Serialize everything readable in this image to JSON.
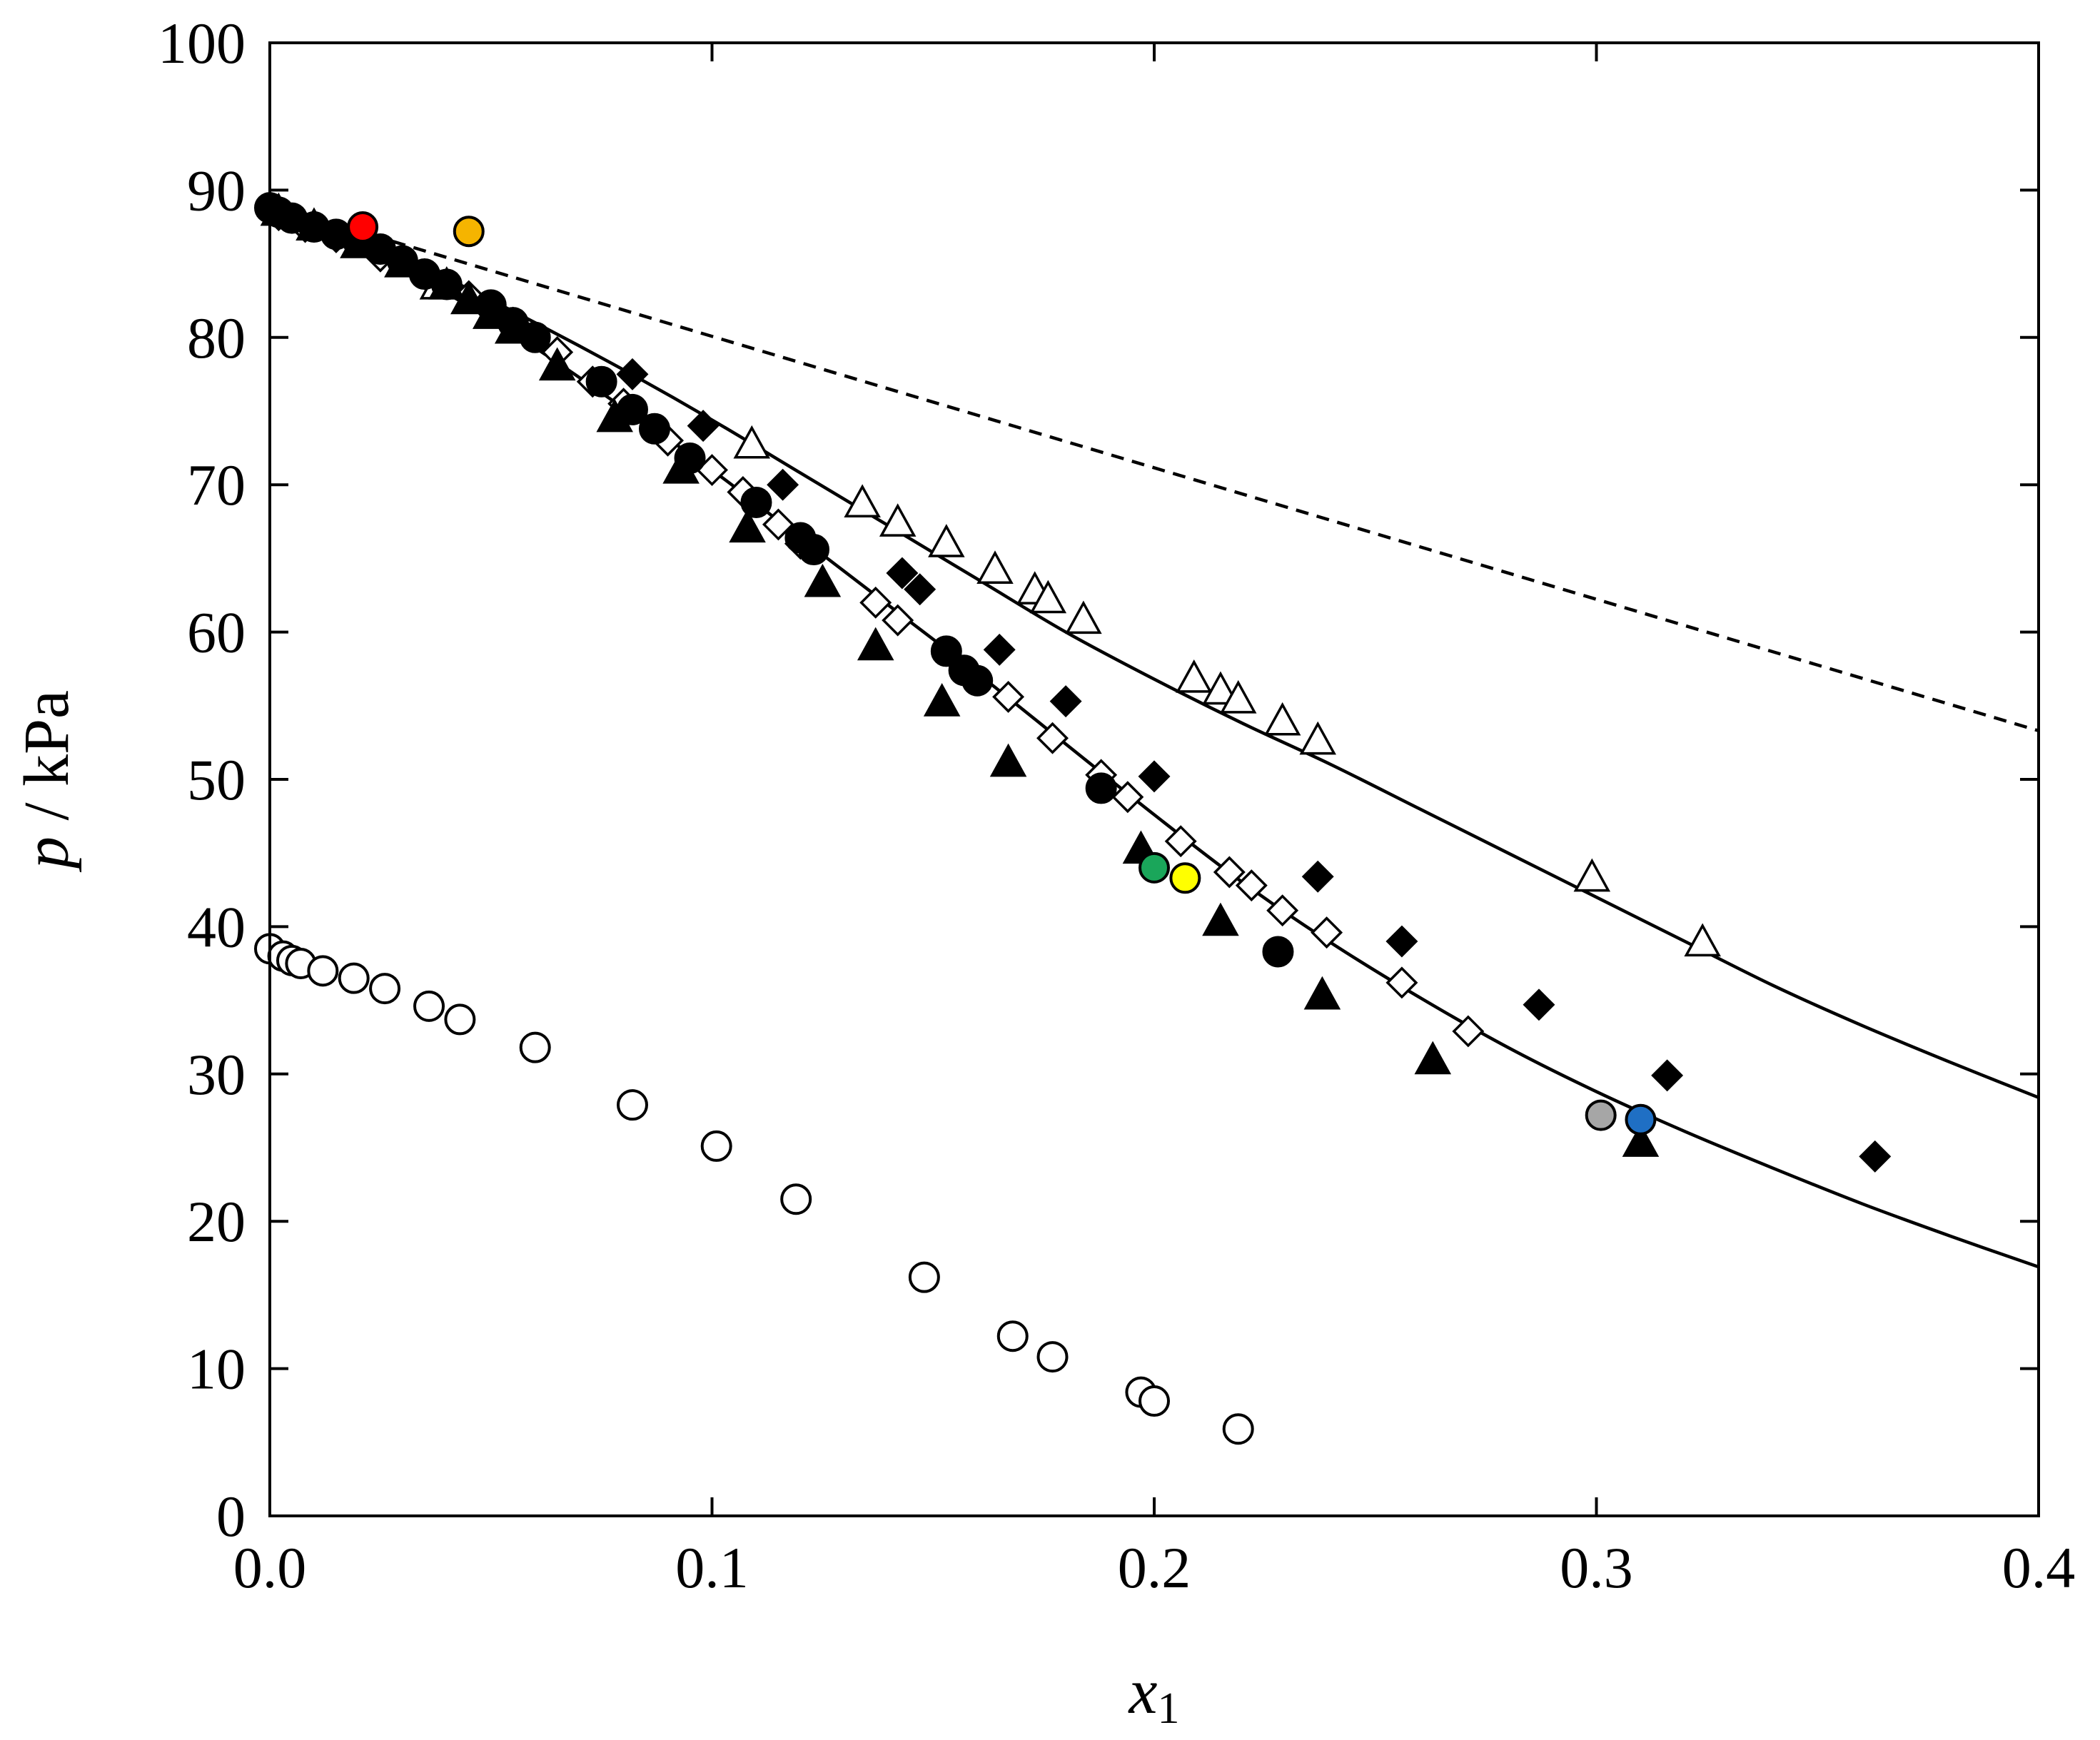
{
  "chart_data": {
    "type": "scatter",
    "xlabel": "x",
    "xlabel_subscript": "1",
    "ylabel_italic": "p",
    "ylabel_rest": " / kPa",
    "xlim": [
      0.0,
      0.4
    ],
    "ylim": [
      0,
      100
    ],
    "xticks": [
      "0.0",
      "0.1",
      "0.2",
      "0.3",
      "0.4"
    ],
    "yticks": [
      "0",
      "10",
      "20",
      "30",
      "40",
      "50",
      "60",
      "70",
      "80",
      "90",
      "100"
    ],
    "series": [
      {
        "marker": "filled-circle",
        "fill": "#000000",
        "stroke": "#000000",
        "points": [
          [
            0.0,
            88.8
          ],
          [
            0.002,
            88.5
          ],
          [
            0.005,
            88.1
          ],
          [
            0.01,
            87.5
          ],
          [
            0.015,
            87.0
          ],
          [
            0.02,
            86.5
          ],
          [
            0.025,
            86.0
          ],
          [
            0.03,
            85.2
          ],
          [
            0.035,
            84.3
          ],
          [
            0.04,
            83.6
          ],
          [
            0.05,
            82.2
          ],
          [
            0.055,
            81.0
          ],
          [
            0.06,
            80.0
          ],
          [
            0.075,
            77.0
          ],
          [
            0.082,
            75.1
          ],
          [
            0.087,
            73.8
          ],
          [
            0.095,
            71.8
          ],
          [
            0.11,
            68.8
          ],
          [
            0.12,
            66.4
          ],
          [
            0.123,
            65.6
          ],
          [
            0.153,
            58.7
          ],
          [
            0.157,
            57.4
          ],
          [
            0.16,
            56.7
          ],
          [
            0.188,
            49.4
          ],
          [
            0.228,
            38.3
          ]
        ]
      },
      {
        "marker": "filled-triangle",
        "fill": "#000000",
        "stroke": "#000000",
        "points": [
          [
            0.002,
            88.5
          ],
          [
            0.01,
            87.5
          ],
          [
            0.02,
            86.3
          ],
          [
            0.03,
            85.0
          ],
          [
            0.04,
            83.5
          ],
          [
            0.045,
            82.5
          ],
          [
            0.05,
            81.5
          ],
          [
            0.055,
            80.5
          ],
          [
            0.065,
            78.0
          ],
          [
            0.078,
            74.5
          ],
          [
            0.093,
            71.0
          ],
          [
            0.108,
            67.0
          ],
          [
            0.125,
            63.3
          ],
          [
            0.137,
            59.0
          ],
          [
            0.152,
            55.2
          ],
          [
            0.167,
            51.1
          ],
          [
            0.197,
            45.2
          ],
          [
            0.215,
            40.3
          ],
          [
            0.238,
            35.3
          ],
          [
            0.263,
            30.9
          ],
          [
            0.31,
            25.3
          ]
        ]
      },
      {
        "marker": "filled-diamond",
        "fill": "#000000",
        "stroke": "#000000",
        "points": [
          [
            0.082,
            77.5
          ],
          [
            0.098,
            74.0
          ],
          [
            0.116,
            70.0
          ],
          [
            0.143,
            64.0
          ],
          [
            0.147,
            62.9
          ],
          [
            0.165,
            58.8
          ],
          [
            0.18,
            55.3
          ],
          [
            0.2,
            50.2
          ],
          [
            0.237,
            43.4
          ],
          [
            0.256,
            39.0
          ],
          [
            0.287,
            34.7
          ],
          [
            0.316,
            29.9
          ],
          [
            0.363,
            24.4
          ]
        ]
      },
      {
        "marker": "open-diamond",
        "fill": "#ffffff",
        "stroke": "#000000",
        "points": [
          [
            0.002,
            88.3
          ],
          [
            0.008,
            87.5
          ],
          [
            0.015,
            86.8
          ],
          [
            0.025,
            85.5
          ],
          [
            0.035,
            84.3
          ],
          [
            0.045,
            82.8
          ],
          [
            0.055,
            81.0
          ],
          [
            0.065,
            79.0
          ],
          [
            0.073,
            77.0
          ],
          [
            0.08,
            75.5
          ],
          [
            0.09,
            73.0
          ],
          [
            0.1,
            71.0
          ],
          [
            0.107,
            69.5
          ],
          [
            0.115,
            67.3
          ],
          [
            0.12,
            66.0
          ],
          [
            0.137,
            62.0
          ],
          [
            0.142,
            60.8
          ],
          [
            0.167,
            55.6
          ],
          [
            0.177,
            52.8
          ],
          [
            0.188,
            50.3
          ],
          [
            0.194,
            48.8
          ],
          [
            0.206,
            45.8
          ],
          [
            0.217,
            43.7
          ],
          [
            0.222,
            42.8
          ],
          [
            0.229,
            41.1
          ],
          [
            0.239,
            39.6
          ],
          [
            0.256,
            36.2
          ],
          [
            0.271,
            32.9
          ]
        ]
      },
      {
        "marker": "open-triangle",
        "fill": "#ffffff",
        "stroke": "#000000",
        "points": [
          [
            0.038,
            83.5
          ],
          [
            0.109,
            72.7
          ],
          [
            0.134,
            68.7
          ],
          [
            0.142,
            67.4
          ],
          [
            0.153,
            66.0
          ],
          [
            0.164,
            64.2
          ],
          [
            0.173,
            62.8
          ],
          [
            0.176,
            62.2
          ],
          [
            0.184,
            60.8
          ],
          [
            0.209,
            56.8
          ],
          [
            0.215,
            56.0
          ],
          [
            0.219,
            55.4
          ],
          [
            0.229,
            53.9
          ],
          [
            0.237,
            52.6
          ],
          [
            0.299,
            43.3
          ],
          [
            0.324,
            38.9
          ]
        ]
      },
      {
        "marker": "open-circle",
        "fill": "#ffffff",
        "stroke": "#000000",
        "points": [
          [
            0.0,
            38.5
          ],
          [
            0.003,
            38.0
          ],
          [
            0.005,
            37.7
          ],
          [
            0.007,
            37.5
          ],
          [
            0.012,
            37.0
          ],
          [
            0.019,
            36.5
          ],
          [
            0.026,
            35.8
          ],
          [
            0.036,
            34.6
          ],
          [
            0.043,
            33.7
          ],
          [
            0.06,
            31.8
          ],
          [
            0.082,
            27.9
          ],
          [
            0.101,
            25.1
          ],
          [
            0.119,
            21.5
          ],
          [
            0.148,
            16.2
          ],
          [
            0.168,
            12.2
          ],
          [
            0.177,
            10.8
          ],
          [
            0.197,
            8.4
          ],
          [
            0.2,
            7.8
          ],
          [
            0.219,
            5.9
          ]
        ]
      },
      {
        "marker": "colored-circle",
        "stroke": "#000000",
        "points": [
          [
            0.021,
            87.5,
            "#ff0000"
          ],
          [
            0.045,
            87.2,
            "#f5b400"
          ],
          [
            0.2,
            44.0,
            "#1aa65a"
          ],
          [
            0.207,
            43.3,
            "#ffff00"
          ],
          [
            0.301,
            27.2,
            "#a6a6a6"
          ],
          [
            0.31,
            26.9,
            "#1f6fc4"
          ]
        ]
      }
    ],
    "curves": [
      {
        "style": "solid",
        "points": [
          [
            0.0,
            89.0
          ],
          [
            0.02,
            86.5
          ],
          [
            0.04,
            84.0
          ],
          [
            0.06,
            81.0
          ],
          [
            0.08,
            77.8
          ],
          [
            0.1,
            74.4
          ],
          [
            0.12,
            70.8
          ],
          [
            0.14,
            67.2
          ],
          [
            0.16,
            63.6
          ],
          [
            0.18,
            60.0
          ],
          [
            0.2,
            56.8
          ],
          [
            0.22,
            53.8
          ],
          [
            0.24,
            51.0
          ],
          [
            0.26,
            48.0
          ],
          [
            0.28,
            45.0
          ],
          [
            0.3,
            42.0
          ],
          [
            0.32,
            39.0
          ],
          [
            0.34,
            36.0
          ],
          [
            0.36,
            33.3
          ],
          [
            0.38,
            30.8
          ],
          [
            0.4,
            28.4
          ]
        ]
      },
      {
        "style": "solid",
        "points": [
          [
            0.0,
            89.0
          ],
          [
            0.02,
            86.2
          ],
          [
            0.04,
            83.0
          ],
          [
            0.06,
            79.3
          ],
          [
            0.08,
            75.2
          ],
          [
            0.1,
            71.0
          ],
          [
            0.12,
            66.4
          ],
          [
            0.14,
            61.8
          ],
          [
            0.16,
            57.2
          ],
          [
            0.18,
            52.4
          ],
          [
            0.2,
            47.6
          ],
          [
            0.22,
            43.0
          ],
          [
            0.24,
            38.9
          ],
          [
            0.26,
            35.2
          ],
          [
            0.28,
            31.8
          ],
          [
            0.3,
            28.8
          ],
          [
            0.32,
            26.1
          ],
          [
            0.34,
            23.6
          ],
          [
            0.36,
            21.2
          ],
          [
            0.38,
            19.0
          ],
          [
            0.4,
            16.9
          ]
        ]
      },
      {
        "style": "dashed",
        "points": [
          [
            0.0,
            89.0
          ],
          [
            0.4,
            53.3
          ]
        ]
      }
    ]
  }
}
